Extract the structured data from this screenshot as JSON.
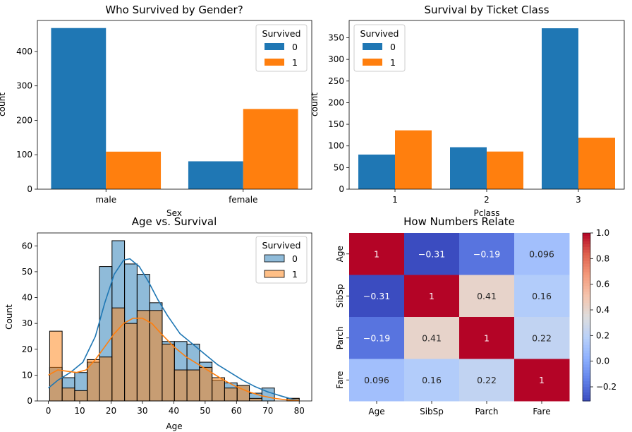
{
  "chart_data": [
    {
      "type": "bar",
      "title": "Who Survived by Gender?",
      "xlabel": "Sex",
      "ylabel": "count",
      "categories": [
        "male",
        "female"
      ],
      "series": [
        {
          "name": "0",
          "values": [
            468,
            81
          ],
          "color": "#1f77b4"
        },
        {
          "name": "1",
          "values": [
            109,
            233
          ],
          "color": "#ff7f0e"
        }
      ],
      "ylim": [
        0,
        490
      ],
      "yticks": [
        0,
        100,
        200,
        300,
        400
      ],
      "legend": {
        "title": "Survived",
        "position": "top-right"
      }
    },
    {
      "type": "bar",
      "title": "Survival by Ticket Class",
      "xlabel": "Pclass",
      "ylabel": "count",
      "categories": [
        "1",
        "2",
        "3"
      ],
      "series": [
        {
          "name": "0",
          "values": [
            80,
            97,
            372
          ],
          "color": "#1f77b4"
        },
        {
          "name": "1",
          "values": [
            136,
            87,
            119
          ],
          "color": "#ff7f0e"
        }
      ],
      "ylim": [
        0,
        390
      ],
      "yticks": [
        0,
        50,
        100,
        150,
        200,
        250,
        300,
        350
      ],
      "legend": {
        "title": "Survived",
        "position": "top-left"
      }
    },
    {
      "type": "histogram",
      "title": "Age vs. Survival",
      "xlabel": "Age",
      "ylabel": "Count",
      "bin_edges": [
        0.42,
        4.4,
        8.4,
        12.4,
        16.3,
        20.3,
        24.3,
        28.3,
        32.3,
        36.3,
        40.2,
        44.2,
        48.2,
        52.2,
        56.2,
        60.2,
        64.1,
        68.1,
        72.1,
        76.1,
        80.0
      ],
      "series": [
        {
          "name": "0",
          "values": [
            13,
            9,
            11,
            15,
            52,
            62,
            53,
            49,
            38,
            23,
            23,
            22,
            15,
            8,
            7,
            6,
            3,
            5,
            0,
            1
          ],
          "color": "#1f77b4"
        },
        {
          "name": "1",
          "values": [
            27,
            5,
            4,
            16,
            17,
            36,
            30,
            35,
            35,
            22,
            12,
            12,
            13,
            9,
            5,
            6,
            1,
            0,
            0,
            1
          ],
          "color": "#ff7f0e"
        }
      ],
      "kde": [
        {
          "name": "0",
          "x": [
            0,
            3,
            7,
            11,
            15,
            18,
            21,
            24,
            26,
            29,
            32,
            35,
            38,
            42,
            46,
            50,
            54,
            58,
            62,
            66,
            70,
            74,
            78,
            80
          ],
          "y": [
            5,
            8,
            11,
            15,
            25,
            38,
            49,
            54.5,
            55,
            52,
            46,
            39,
            33,
            26,
            22,
            18,
            14,
            11,
            8,
            5.5,
            3.5,
            2,
            0.6,
            0.2
          ]
        },
        {
          "name": "1",
          "x": [
            0,
            3,
            6,
            9,
            12,
            15,
            18,
            21,
            24,
            27,
            30,
            33,
            36,
            40,
            44,
            48,
            52,
            56,
            60,
            64,
            68,
            72,
            76,
            80
          ],
          "y": [
            10,
            12,
            11.5,
            11,
            12,
            16,
            21,
            26,
            30,
            32,
            32,
            30,
            26,
            21,
            17,
            14,
            11,
            8,
            5.5,
            3.5,
            2,
            1,
            0.4,
            0.1
          ]
        }
      ],
      "xlim": [
        -3.5,
        84
      ],
      "ylim": [
        0,
        65
      ],
      "xticks": [
        0,
        10,
        20,
        30,
        40,
        50,
        60,
        70,
        80
      ],
      "yticks": [
        0,
        10,
        20,
        30,
        40,
        50,
        60
      ],
      "legend": {
        "title": "Survived",
        "position": "top-right"
      }
    },
    {
      "type": "heatmap",
      "title": "How Numbers Relate",
      "labels": [
        "Age",
        "SibSp",
        "Parch",
        "Fare"
      ],
      "matrix": [
        [
          1,
          -0.31,
          -0.19,
          0.096
        ],
        [
          -0.31,
          1,
          0.41,
          0.16
        ],
        [
          -0.19,
          0.41,
          1,
          0.22
        ],
        [
          0.096,
          0.16,
          0.22,
          1
        ]
      ],
      "colormap": "coolwarm",
      "vmin": -0.31,
      "vmax": 1.0,
      "colorbar_ticks": [
        -0.2,
        0,
        0.2,
        0.4,
        0.6,
        0.8,
        1.0
      ],
      "colorbar_tick_labels": [
        "−0.2",
        "0.0",
        "0.2",
        "0.4",
        "0.6",
        "0.8",
        "1.0"
      ]
    }
  ]
}
